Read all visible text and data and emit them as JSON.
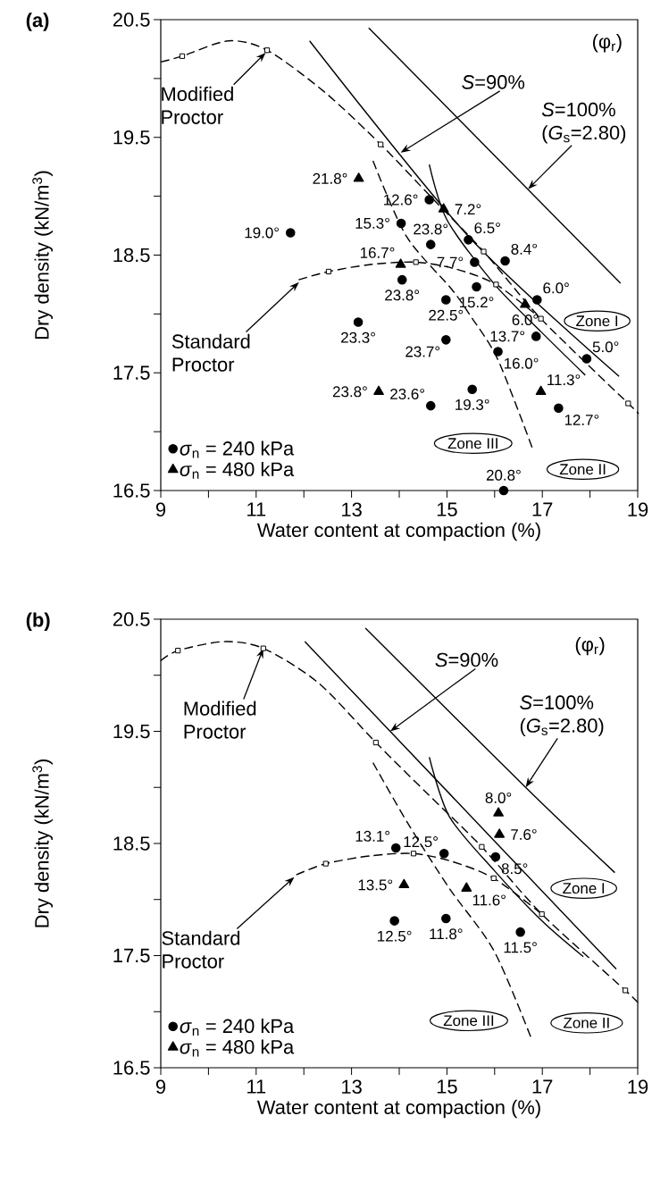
{
  "chart_data": [
    {
      "type": "scatter",
      "title": "(a)",
      "xlabel": "Water content at compaction (%)",
      "ylabel": "Dry density (kN/m$^{3}$)",
      "xlim": [
        9,
        19
      ],
      "ylim": [
        16.5,
        20.5
      ],
      "xticks": [
        9,
        {
          "value": 10,
          "label": null
        },
        11,
        {
          "value": 12,
          "label": null
        },
        13,
        {
          "value": 14,
          "label": null
        },
        15,
        {
          "value": 16,
          "label": null
        },
        17,
        {
          "value": 18,
          "label": null
        },
        19
      ],
      "yticks": [
        16.5,
        {
          "value": 17,
          "label": null
        },
        17.5,
        {
          "value": 18,
          "label": null
        },
        18.5,
        {
          "value": 19,
          "label": null
        },
        19.5,
        {
          "value": 20,
          "label": null
        },
        20.5
      ],
      "legend": "bottom left",
      "series": [
        {
          "name": "*σ*$_{n}$ = 240 kPa",
          "type": "scatter",
          "marker": "circle",
          "color": "#000000",
          "x": [
            11.72,
            13.14,
            14.06,
            14.63,
            14.04,
            14.66,
            14.98,
            14.98,
            14.66,
            15.53,
            16.07,
            16.87,
            17.34,
            17.93,
            15.45,
            16.22,
            15.58,
            15.62,
            16.89,
            16.19
          ],
          "values": [
            18.69,
            17.93,
            18.29,
            18.97,
            18.77,
            18.59,
            18.12,
            17.78,
            17.22,
            17.36,
            17.68,
            17.81,
            17.2,
            17.62,
            18.63,
            18.45,
            18.44,
            18.23,
            18.12,
            16.5
          ]
        },
        {
          "name": "*σ*$_{n}$ = 480 kPa",
          "type": "scatter",
          "marker": "triangle",
          "color": "#000000",
          "x": [
            13.15,
            14.93,
            14.03,
            13.57,
            16.64,
            16.97
          ],
          "values": [
            19.15,
            18.89,
            18.42,
            17.34,
            18.08,
            17.34
          ]
        },
        {
          "type": "line",
          "marker": "none",
          "line_style": "dashed",
          "color": "#000000",
          "x": [
            9,
            9.45,
            10.42,
            11.23,
            12.42,
            13.61,
            14.7,
            15.77,
            16.97,
            18.8,
            19
          ],
          "values": [
            20.14,
            20.19,
            20.32,
            20.24,
            19.89,
            19.44,
            18.98,
            18.53,
            17.96,
            17.24,
            17.16
          ]
        },
        {
          "type": "scatter",
          "marker": "square",
          "color": "#000000",
          "x": [
            9.45,
            11.23,
            13.61,
            15.77,
            16.97,
            18.8
          ],
          "values": [
            20.19,
            20.24,
            19.44,
            18.53,
            17.96,
            17.24
          ]
        },
        {
          "type": "line",
          "marker": "none",
          "line_style": "dashed",
          "color": "#000000",
          "x": [
            11.89,
            12.52,
            13.4,
            14.35,
            15.2,
            16.03,
            16.97
          ],
          "values": [
            18.29,
            18.36,
            18.42,
            18.44,
            18.38,
            18.25,
            17.96
          ]
        },
        {
          "type": "scatter",
          "marker": "square",
          "color": "#000000",
          "x": [
            12.52,
            14.35,
            16.03
          ],
          "values": [
            18.36,
            18.44,
            18.25
          ]
        },
        {
          "type": "line",
          "marker": "none",
          "line_style": "solid",
          "color": "#000000",
          "x": [
            12.12,
            15.45,
            18.61
          ],
          "values": [
            20.32,
            18.66,
            17.47
          ]
        },
        {
          "type": "line",
          "marker": "none",
          "line_style": "solid",
          "color": "#000000",
          "x": [
            13.36,
            18.64
          ],
          "values": [
            20.43,
            18.26
          ]
        },
        {
          "type": "line",
          "marker": "none",
          "line_style": "solid",
          "color": "#000000",
          "x": [
            14.63,
            15.0,
            15.98,
            16.97,
            17.9
          ],
          "values": [
            19.27,
            18.8,
            18.26,
            17.85,
            17.48
          ]
        },
        {
          "type": "line",
          "marker": "none",
          "line_style": "dashed",
          "color": "#000000",
          "x": [
            13.45,
            14.15,
            15.1,
            15.5,
            16.07,
            16.8
          ],
          "values": [
            19.3,
            18.66,
            18.21,
            17.98,
            17.61,
            16.85
          ]
        }
      ],
      "annotations": [
        {
          "text": "Modified Proctor",
          "x": 11.2,
          "y": 20.22
        },
        {
          "text": "Standard Proctor",
          "x": 11.9,
          "y": 18.27
        },
        {
          "text": "*S*=90%",
          "x": 14.03,
          "y": 19.37
        },
        {
          "text": "*S*=100% (*G*$_{s}$=2.80)",
          "x": 16.7,
          "y": 19.06
        },
        "(φ$_{r}$)",
        "Zone I",
        "Zone II",
        "Zone III",
        {
          "text": "19.0°",
          "x": 11.72,
          "y": 18.69
        },
        {
          "text": "23.3°",
          "x": 13.14,
          "y": 17.93
        },
        {
          "text": "23.8°",
          "x": 14.06,
          "y": 18.29
        },
        {
          "text": "12.6°",
          "x": 14.63,
          "y": 18.97
        },
        {
          "text": "15.3°",
          "x": 14.04,
          "y": 18.77
        },
        {
          "text": "23.8°",
          "x": 14.66,
          "y": 18.59
        },
        {
          "text": "22.5°",
          "x": 14.98,
          "y": 18.12
        },
        {
          "text": "23.7°",
          "x": 14.98,
          "y": 17.78
        },
        {
          "text": "23.6°",
          "x": 14.66,
          "y": 17.22
        },
        {
          "text": "19.3°",
          "x": 15.53,
          "y": 17.36
        },
        {
          "text": "16.0°",
          "x": 16.07,
          "y": 17.68
        },
        {
          "text": "13.7°",
          "x": 16.87,
          "y": 17.81
        },
        {
          "text": "12.7°",
          "x": 17.34,
          "y": 17.2
        },
        {
          "text": "5.0°",
          "x": 17.93,
          "y": 17.62
        },
        {
          "text": "6.5°",
          "x": 15.45,
          "y": 18.63
        },
        {
          "text": "8.4°",
          "x": 16.22,
          "y": 18.45
        },
        {
          "text": "7.7°",
          "x": 15.58,
          "y": 18.44
        },
        {
          "text": "15.2°",
          "x": 15.62,
          "y": 18.23
        },
        {
          "text": "6.0°",
          "x": 16.89,
          "y": 18.12
        },
        {
          "text": "20.8°",
          "x": 16.19,
          "y": 16.5
        },
        {
          "text": "21.8°",
          "x": 13.15,
          "y": 19.15
        },
        {
          "text": "7.2°",
          "x": 14.93,
          "y": 18.89
        },
        {
          "text": "16.7°",
          "x": 14.03,
          "y": 18.42
        },
        {
          "text": "23.8°",
          "x": 13.57,
          "y": 17.34
        },
        {
          "text": "6.0°",
          "x": 16.64,
          "y": 18.08
        },
        {
          "text": "11.3°",
          "x": 16.97,
          "y": 17.34
        }
      ]
    },
    {
      "type": "scatter",
      "title": "(b)",
      "xlabel": "Water content at compaction (%)",
      "ylabel": "Dry density (kN/m$^{3}$)",
      "xlim": [
        9,
        19
      ],
      "ylim": [
        16.5,
        20.5
      ],
      "xticks": [
        9,
        {
          "value": 10,
          "label": null
        },
        11,
        {
          "value": 12,
          "label": null
        },
        13,
        {
          "value": 14,
          "label": null
        },
        15,
        {
          "value": 16,
          "label": null
        },
        17,
        {
          "value": 18,
          "label": null
        },
        19
      ],
      "yticks": [
        16.5,
        {
          "value": 17,
          "label": null
        },
        17.5,
        {
          "value": 18,
          "label": null
        },
        18.5,
        {
          "value": 19,
          "label": null
        },
        19.5,
        {
          "value": 20,
          "label": null
        },
        20.5
      ],
      "legend": "bottom left",
      "series": [
        {
          "name": "*σ*$_{n}$ = 240 kPa",
          "type": "scatter",
          "marker": "circle",
          "color": "#000000",
          "x": [
            13.93,
            14.94,
            16.02,
            13.9,
            14.98,
            16.54
          ],
          "values": [
            18.46,
            18.41,
            18.38,
            17.81,
            17.83,
            17.71
          ]
        },
        {
          "name": "*σ*$_{n}$ = 480 kPa",
          "type": "scatter",
          "marker": "triangle",
          "color": "#000000",
          "x": [
            16.08,
            16.1,
            14.1,
            15.41
          ],
          "values": [
            18.77,
            18.58,
            18.13,
            18.1
          ]
        },
        {
          "type": "line",
          "marker": "none",
          "line_style": "dashed",
          "color": "#000000",
          "x": [
            9,
            9.36,
            10.31,
            11.15,
            12.31,
            13.51,
            14.6,
            15.73,
            16.99,
            18.74,
            19
          ],
          "values": [
            20.13,
            20.22,
            20.3,
            20.24,
            19.93,
            19.4,
            18.94,
            18.47,
            17.87,
            17.19,
            17.08
          ]
        },
        {
          "type": "scatter",
          "marker": "square",
          "color": "#000000",
          "x": [
            9.36,
            11.15,
            13.51,
            15.73,
            16.99,
            18.74
          ],
          "values": [
            20.22,
            20.24,
            19.4,
            18.47,
            17.87,
            17.19
          ]
        },
        {
          "type": "line",
          "marker": "none",
          "line_style": "dashed",
          "color": "#000000",
          "x": [
            11.84,
            12.46,
            13.4,
            14.3,
            15.1,
            15.98,
            16.99
          ],
          "values": [
            18.22,
            18.32,
            18.39,
            18.41,
            18.34,
            18.19,
            17.87
          ]
        },
        {
          "type": "scatter",
          "marker": "square",
          "color": "#000000",
          "x": [
            12.46,
            14.3,
            15.98
          ],
          "values": [
            18.32,
            18.41,
            18.19
          ]
        },
        {
          "type": "line",
          "marker": "none",
          "line_style": "solid",
          "color": "#000000",
          "x": [
            12.02,
            13.81,
            18.55
          ],
          "values": [
            20.3,
            19.5,
            17.38
          ]
        },
        {
          "type": "line",
          "marker": "none",
          "line_style": "solid",
          "color": "#000000",
          "x": [
            13.29,
            16.65,
            18.52
          ],
          "values": [
            20.42,
            19.0,
            18.24
          ]
        },
        {
          "type": "line",
          "marker": "none",
          "line_style": "solid",
          "color": "#000000",
          "x": [
            14.63,
            15.05,
            15.99,
            16.99,
            17.86
          ],
          "values": [
            19.27,
            18.74,
            18.26,
            17.81,
            17.49
          ]
        },
        {
          "type": "line",
          "marker": "none",
          "line_style": "dashed",
          "color": "#000000",
          "x": [
            13.45,
            14.18,
            15.05,
            15.99,
            16.77
          ],
          "values": [
            19.22,
            18.68,
            18.1,
            17.54,
            16.76
          ]
        }
      ],
      "annotations": [
        {
          "text": "Modified Proctor",
          "x": 11.15,
          "y": 20.24
        },
        {
          "text": "Standard Proctor",
          "x": 11.8,
          "y": 18.2
        },
        {
          "text": "*S*=90%",
          "x": 13.81,
          "y": 19.5
        },
        {
          "text": "*S*=100% (*G*$_{s}$=2.80)",
          "x": 16.65,
          "y": 19.0
        },
        "(φ$_{r}$)",
        "Zone I",
        "Zone II",
        "Zone III",
        {
          "text": "13.1°",
          "x": 13.93,
          "y": 18.46
        },
        {
          "text": "12.5°",
          "x": 14.94,
          "y": 18.41
        },
        {
          "text": "8.5°",
          "x": 16.02,
          "y": 18.38
        },
        {
          "text": "12.5°",
          "x": 13.9,
          "y": 17.81
        },
        {
          "text": "11.8°",
          "x": 14.98,
          "y": 17.83
        },
        {
          "text": "11.5°",
          "x": 16.54,
          "y": 17.71
        },
        {
          "text": "8.0°",
          "x": 16.08,
          "y": 18.77
        },
        {
          "text": "7.6°",
          "x": 16.1,
          "y": 18.58
        },
        {
          "text": "13.5°",
          "x": 14.1,
          "y": 18.13
        },
        {
          "text": "11.6°",
          "x": 15.41,
          "y": 18.1
        }
      ]
    }
  ]
}
